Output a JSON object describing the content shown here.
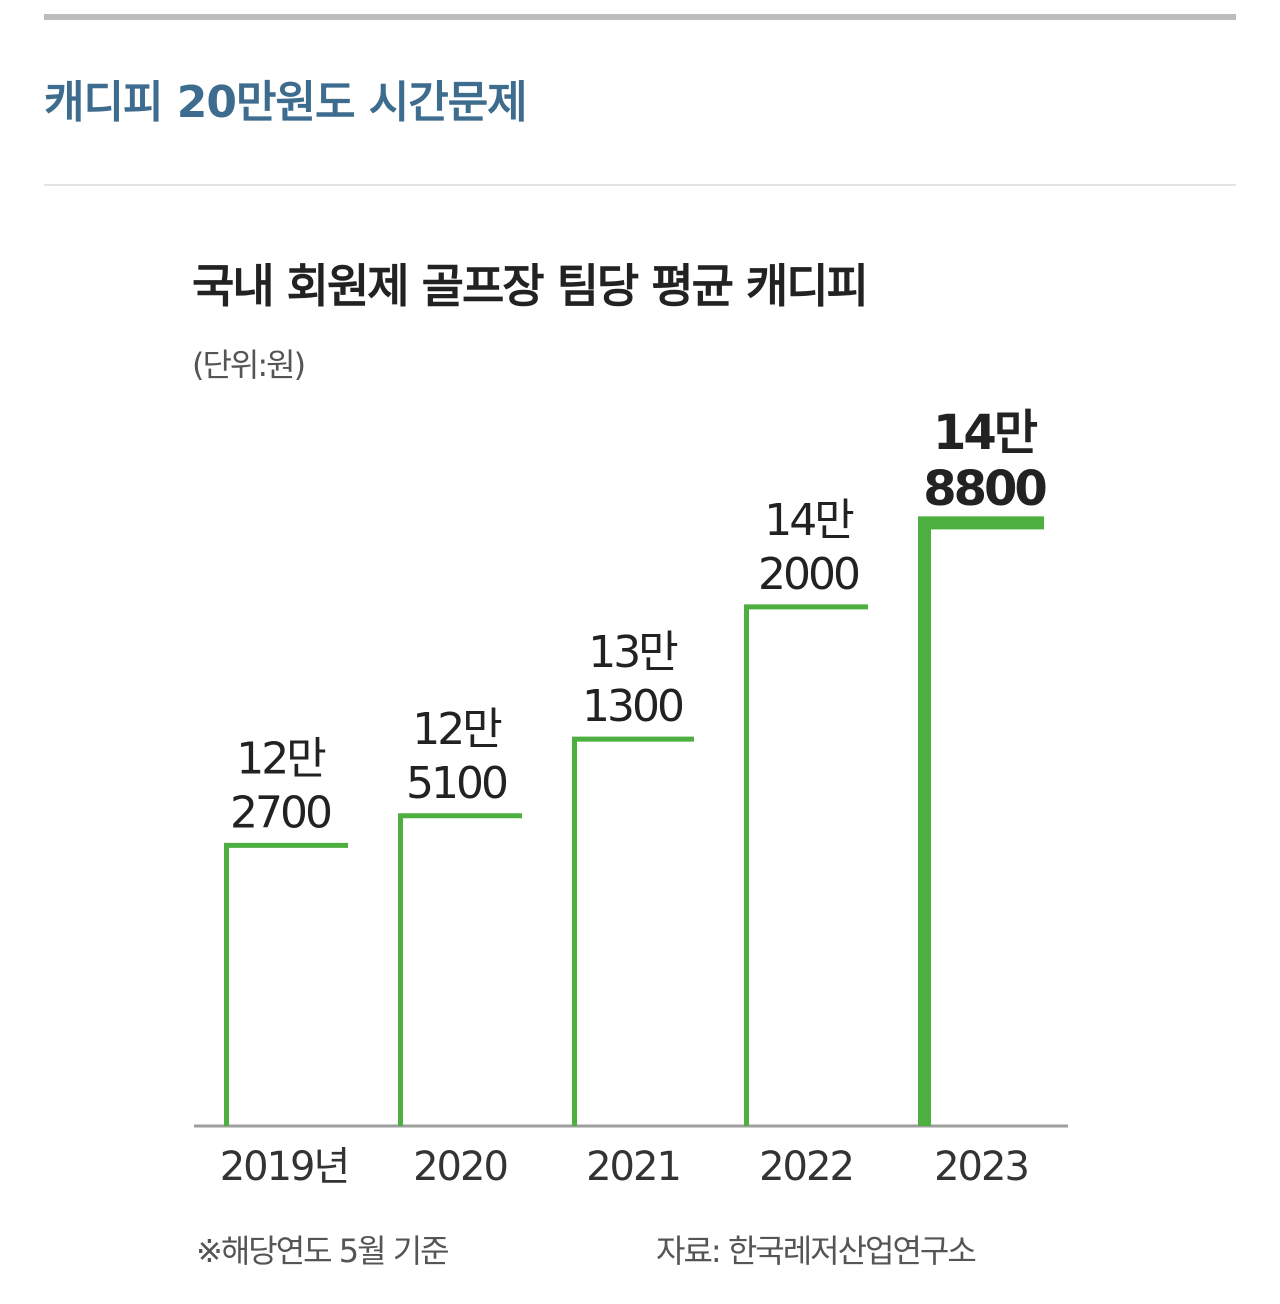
{
  "article": {
    "headline": "캐디피 20만원도 시간문제"
  },
  "chart_data": {
    "type": "bar",
    "title": "국내 회원제 골프장 팀당 평균 캐디피",
    "unit_label": "(단위:원)",
    "categories": [
      "2019년",
      "2020",
      "2021",
      "2022",
      "2023"
    ],
    "values": [
      122700,
      125100,
      131300,
      142000,
      148800
    ],
    "value_labels": [
      [
        "12만",
        "2700"
      ],
      [
        "12만",
        "5100"
      ],
      [
        "13만",
        "1300"
      ],
      [
        "14만",
        "2000"
      ],
      [
        "14만",
        "8800"
      ]
    ],
    "highlight_index": 4,
    "ylim": [
      100000,
      150000
    ],
    "bar_color": "#4caf3f",
    "axis_color": "#9e9e9e",
    "footnote": "※해당연도 5월 기준",
    "source": "자료: 한국레저산업연구소"
  }
}
